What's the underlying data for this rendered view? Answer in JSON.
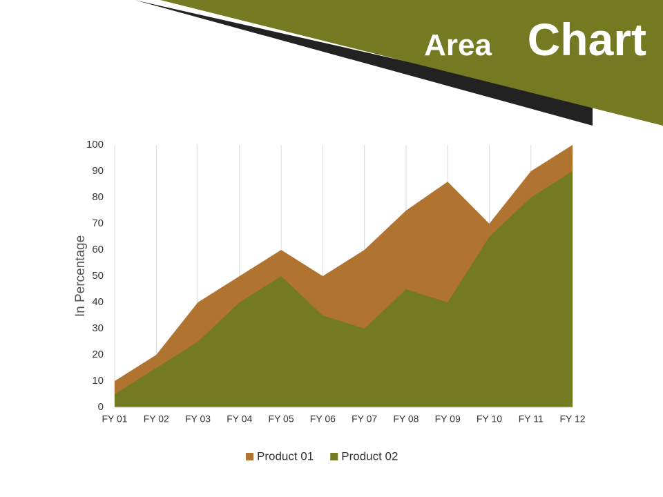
{
  "chart_data": {
    "type": "area",
    "title": [
      "Area",
      "Chart"
    ],
    "y_label": "In Percentage",
    "categories": [
      "FY 01",
      "FY 02",
      "FY 03",
      "FY 04",
      "FY 05",
      "FY 06",
      "FY 07",
      "FY 08",
      "FY 09",
      "FY 10",
      "FY 11",
      "FY 12"
    ],
    "series": [
      {
        "name": "Product 01",
        "color": "#b07430",
        "values": [
          10,
          20,
          40,
          50,
          60,
          50,
          60,
          75,
          86,
          70,
          90,
          100
        ]
      },
      {
        "name": "Product 02",
        "color": "#737a22",
        "values": [
          5,
          15,
          25,
          40,
          50,
          35,
          30,
          45,
          40,
          65,
          80,
          90
        ]
      }
    ],
    "ylim": [
      0,
      100
    ],
    "yticks": [
      0,
      10,
      20,
      30,
      40,
      50,
      60,
      70,
      80,
      90,
      100
    ],
    "grid": "vertical",
    "legend": "bottom"
  }
}
